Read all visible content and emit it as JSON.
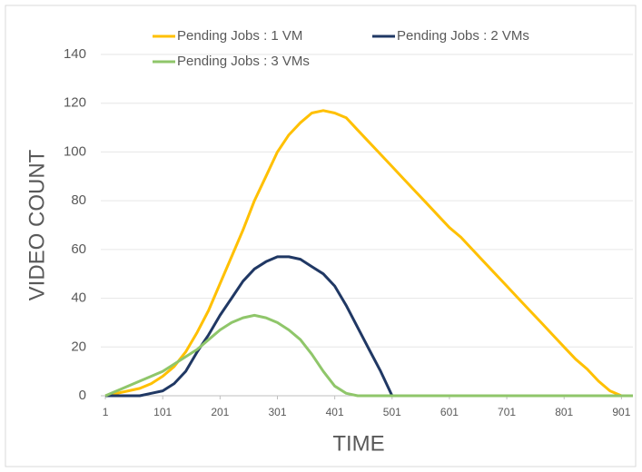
{
  "chart_data": {
    "type": "line",
    "x_label": "TIME",
    "y_label": "VIDEO COUNT",
    "x": [
      1,
      21,
      41,
      61,
      81,
      101,
      121,
      141,
      161,
      181,
      201,
      221,
      241,
      261,
      281,
      301,
      321,
      341,
      361,
      381,
      401,
      421,
      441,
      461,
      481,
      501,
      521,
      541,
      561,
      581,
      601,
      621,
      641,
      661,
      681,
      701,
      721,
      741,
      761,
      781,
      801,
      821,
      841,
      861,
      881,
      901,
      921
    ],
    "series": [
      {
        "name": "Pending Jobs : 1 VM",
        "color": "#ffc000",
        "values": [
          0,
          1,
          2,
          3,
          5,
          8,
          12,
          18,
          26,
          35,
          46,
          57,
          68,
          80,
          90,
          100,
          107,
          112,
          116,
          117,
          116,
          114,
          109,
          104,
          99,
          94,
          89,
          84,
          79,
          74,
          69,
          65,
          60,
          55,
          50,
          45,
          40,
          35,
          30,
          25,
          20,
          15,
          11,
          6,
          2,
          0,
          0
        ]
      },
      {
        "name": "Pending Jobs : 2 VMs",
        "color": "#203864",
        "values": [
          0,
          0,
          0,
          0,
          1,
          2,
          5,
          10,
          18,
          25,
          33,
          40,
          47,
          52,
          55,
          57,
          57,
          56,
          53,
          50,
          45,
          37,
          28,
          19,
          10,
          0,
          0,
          0,
          0,
          0,
          0,
          0,
          0,
          0,
          0,
          0,
          0,
          0,
          0,
          0,
          0,
          0,
          0,
          0,
          0,
          0,
          0
        ]
      },
      {
        "name": "Pending Jobs : 3 VMs",
        "color": "#8fc66a",
        "values": [
          0,
          2,
          4,
          6,
          8,
          10,
          13,
          16,
          19,
          23,
          27,
          30,
          32,
          33,
          32,
          30,
          27,
          23,
          17,
          10,
          4,
          1,
          0,
          0,
          0,
          0,
          0,
          0,
          0,
          0,
          0,
          0,
          0,
          0,
          0,
          0,
          0,
          0,
          0,
          0,
          0,
          0,
          0,
          0,
          0,
          0,
          0
        ]
      }
    ],
    "xlim": [
      -7,
      921
    ],
    "xticks": [
      1,
      101,
      201,
      301,
      401,
      501,
      601,
      701,
      801,
      901
    ],
    "ylim": [
      0,
      140
    ],
    "yticks": [
      0,
      20,
      40,
      60,
      80,
      100,
      120,
      140
    ],
    "grid": true,
    "legend": "top"
  }
}
